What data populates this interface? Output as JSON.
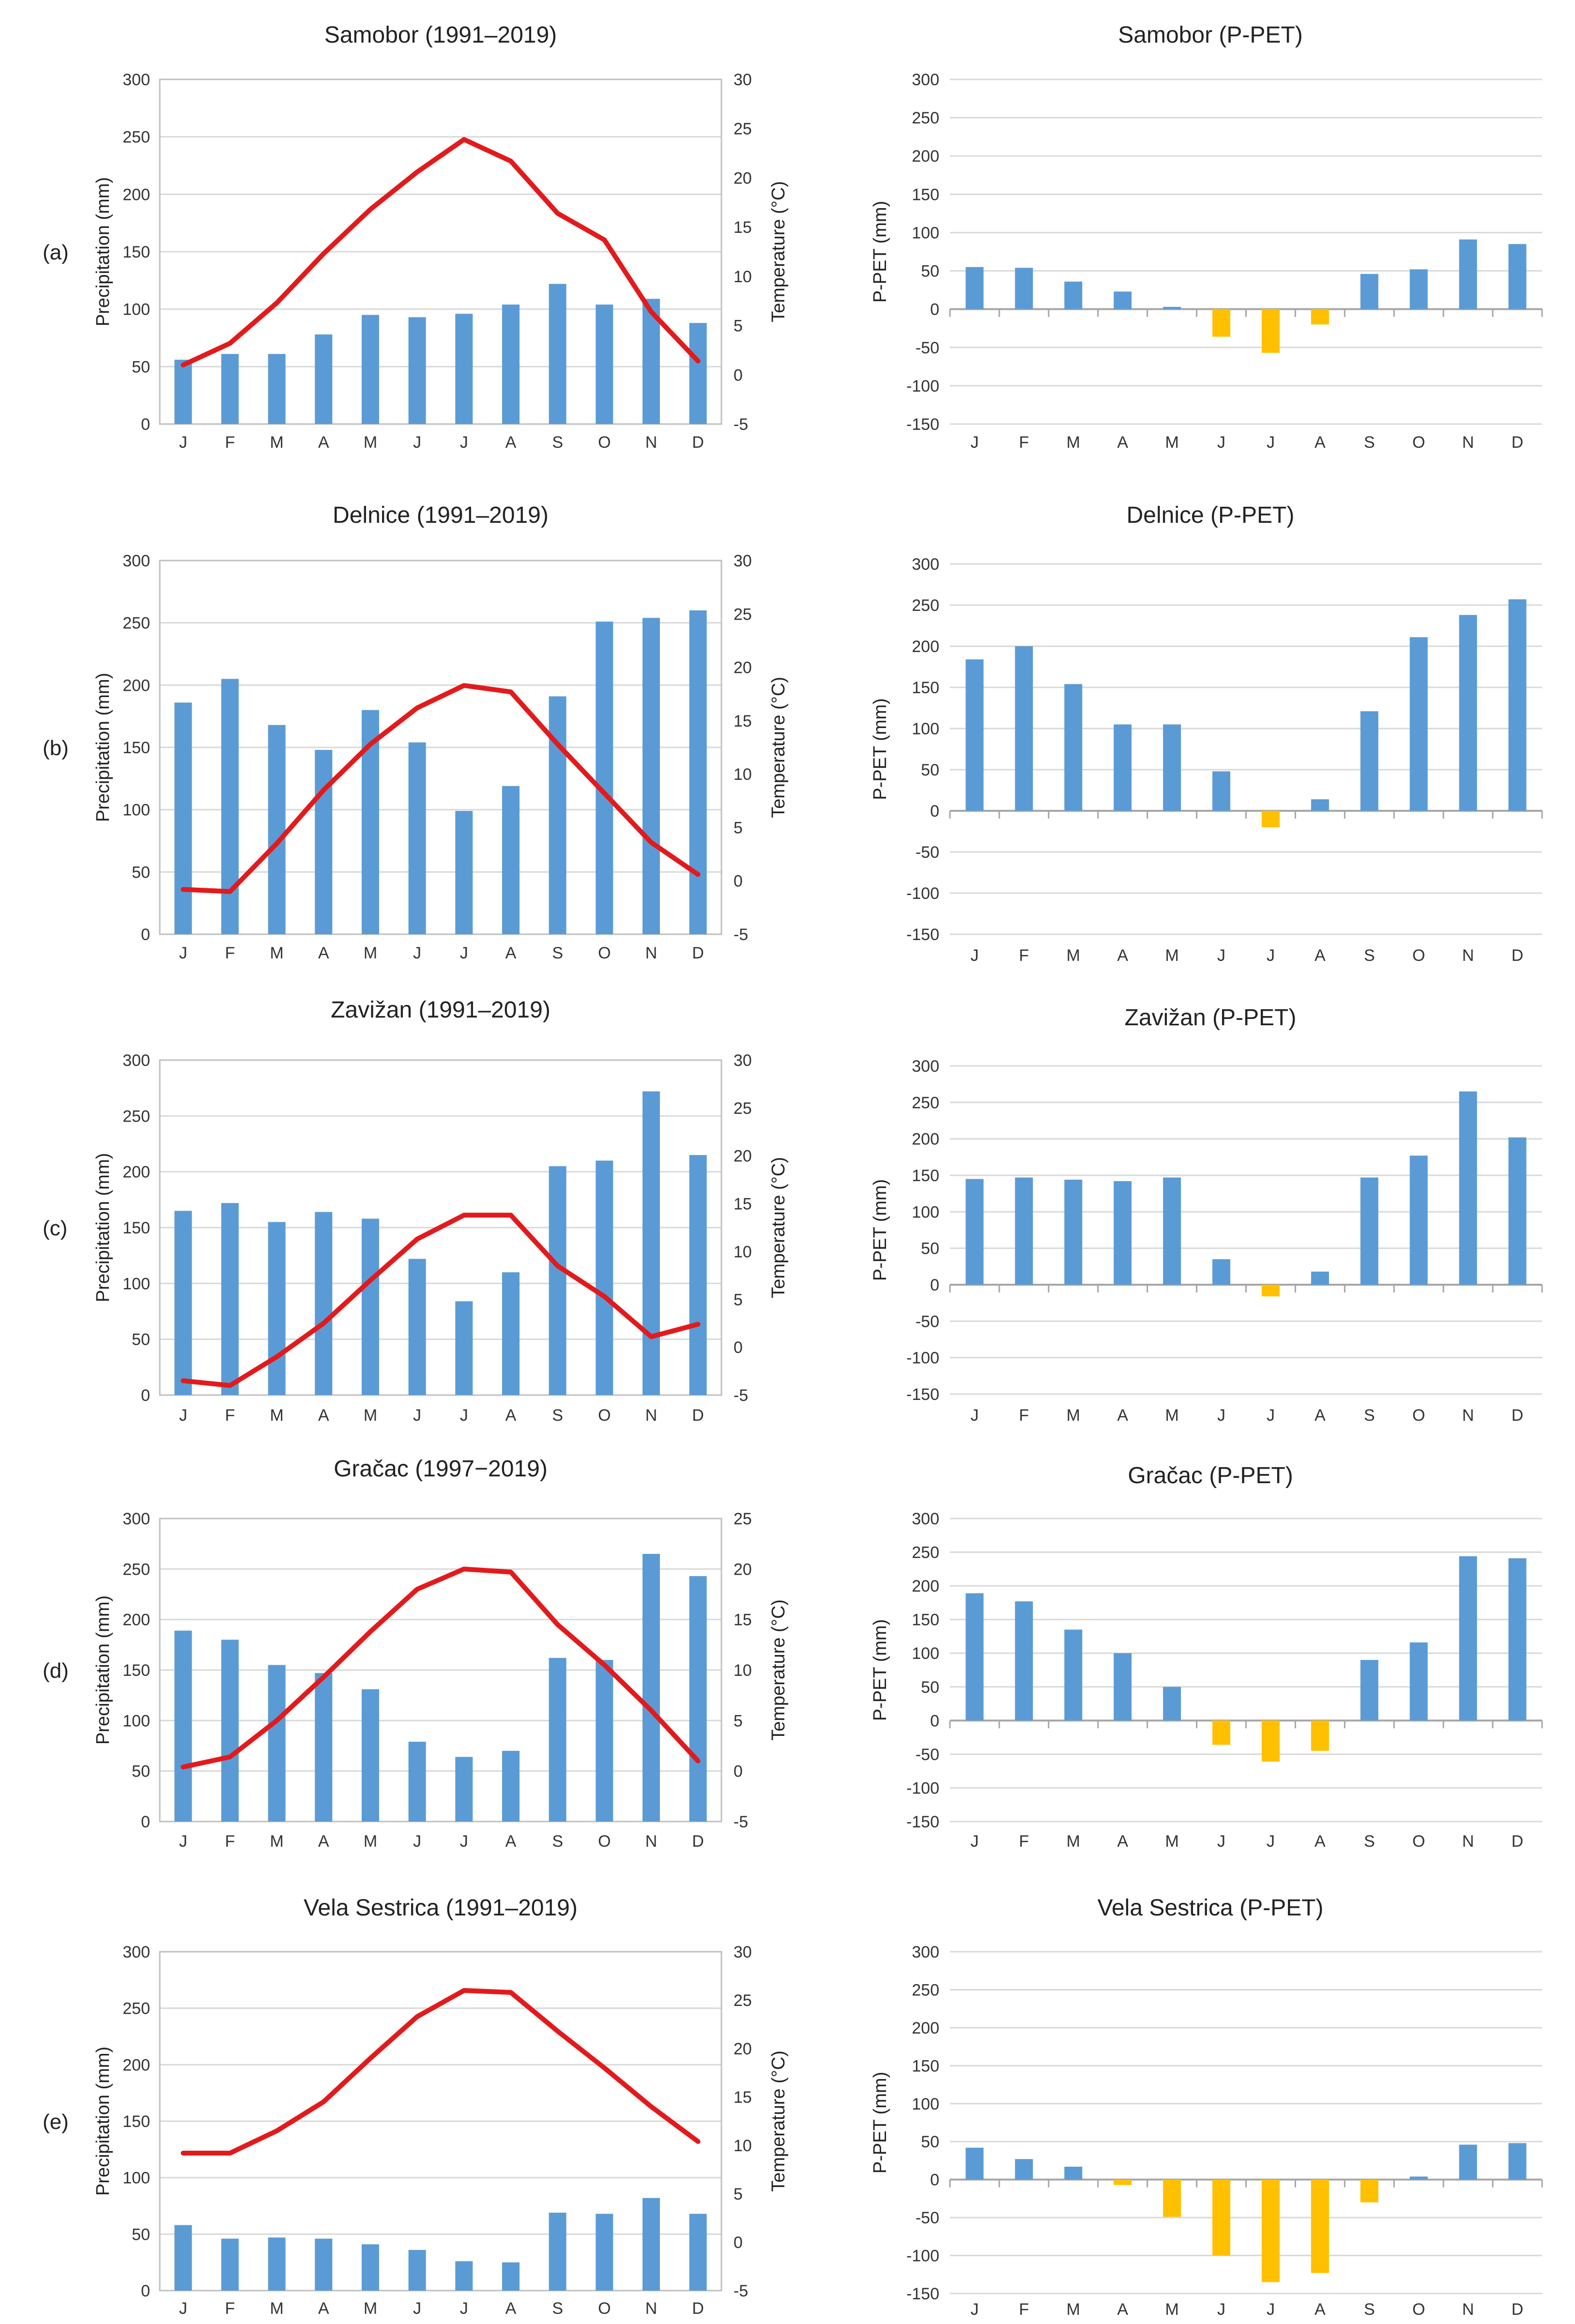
{
  "colors": {
    "bar": "#5B9BD5",
    "bar_negative": "#FFC000",
    "temperature_line": "#E31A1C",
    "grid": "#D9D9D9",
    "axis": "#BFBFBF"
  },
  "months": [
    "J",
    "F",
    "M",
    "A",
    "M",
    "J",
    "J",
    "A",
    "S",
    "O",
    "N",
    "D"
  ],
  "chart_data": [
    {
      "id": "samobor-climate",
      "panel_label": "(a)",
      "type": "bar+line",
      "title": "Samobor (1991–2019)",
      "ylabel": "Precipitation (mm)",
      "y2label": "Temperature (°C)",
      "ylim": [
        0,
        300
      ],
      "yticks": [
        0,
        50,
        100,
        150,
        200,
        250,
        300
      ],
      "y2lim": [
        -5,
        30
      ],
      "y2ticks": [
        -5,
        0,
        5,
        10,
        15,
        20,
        25,
        30
      ],
      "categories": [
        "J",
        "F",
        "M",
        "A",
        "M",
        "J",
        "J",
        "A",
        "S",
        "O",
        "N",
        "D"
      ],
      "series": [
        {
          "name": "Precipitation",
          "kind": "bar",
          "axis": "left",
          "values": [
            56,
            61,
            61,
            78,
            95,
            93,
            96,
            104,
            122,
            104,
            109,
            88
          ]
        },
        {
          "name": "Temperature",
          "kind": "line",
          "axis": "right",
          "values": [
            1.0,
            3.2,
            7.3,
            12.3,
            16.8,
            20.6,
            23.9,
            21.7,
            16.4,
            13.7,
            6.4,
            1.4
          ]
        }
      ]
    },
    {
      "id": "samobor-ppet",
      "type": "bar",
      "title": "Samobor (P-PET)",
      "ylabel": "P-PET (mm)",
      "ylim": [
        -150,
        300
      ],
      "yticks": [
        -150,
        -100,
        -50,
        0,
        50,
        100,
        150,
        200,
        250,
        300
      ],
      "categories": [
        "J",
        "F",
        "M",
        "A",
        "M",
        "J",
        "J",
        "A",
        "S",
        "O",
        "N",
        "D"
      ],
      "values": [
        55,
        54,
        36,
        23,
        3,
        -36,
        -57,
        -20,
        46,
        52,
        91,
        85
      ]
    },
    {
      "id": "delnice-climate",
      "panel_label": "(b)",
      "type": "bar+line",
      "title": "Delnice (1991–2019)",
      "ylabel": "Precipitation (mm)",
      "y2label": "Temperature (°C)",
      "ylim": [
        0,
        300
      ],
      "yticks": [
        0,
        50,
        100,
        150,
        200,
        250,
        300
      ],
      "y2lim": [
        -5,
        30
      ],
      "y2ticks": [
        -5,
        0,
        5,
        10,
        15,
        20,
        25,
        30
      ],
      "categories": [
        "J",
        "F",
        "M",
        "A",
        "M",
        "J",
        "J",
        "A",
        "S",
        "O",
        "N",
        "D"
      ],
      "series": [
        {
          "name": "Precipitation",
          "kind": "bar",
          "axis": "left",
          "values": [
            186,
            205,
            168,
            148,
            180,
            154,
            99,
            119,
            191,
            251,
            254,
            260
          ]
        },
        {
          "name": "Temperature",
          "kind": "line",
          "axis": "right",
          "values": [
            -0.8,
            -1.0,
            3.5,
            8.5,
            12.8,
            16.2,
            18.3,
            17.7,
            12.8,
            8.2,
            3.6,
            0.6
          ]
        }
      ]
    },
    {
      "id": "delnice-ppet",
      "type": "bar",
      "title": "Delnice (P-PET)",
      "ylabel": "P-PET (mm)",
      "ylim": [
        -150,
        300
      ],
      "yticks": [
        -150,
        -100,
        -50,
        0,
        50,
        100,
        150,
        200,
        250,
        300
      ],
      "categories": [
        "J",
        "F",
        "M",
        "A",
        "M",
        "J",
        "J",
        "A",
        "S",
        "O",
        "N",
        "D"
      ],
      "values": [
        184,
        200,
        154,
        105,
        105,
        48,
        -20,
        14,
        121,
        211,
        238,
        257
      ]
    },
    {
      "id": "zavizan-climate",
      "panel_label": "(c)",
      "type": "bar+line",
      "title": "Zavižan (1991–2019)",
      "ylabel": "Precipitation (mm)",
      "y2label": "Temperature (°C)",
      "ylim": [
        0,
        300
      ],
      "yticks": [
        0,
        50,
        100,
        150,
        200,
        250,
        300
      ],
      "y2lim": [
        -5,
        30
      ],
      "y2ticks": [
        -5,
        0,
        5,
        10,
        15,
        20,
        25,
        30
      ],
      "categories": [
        "J",
        "F",
        "M",
        "A",
        "M",
        "J",
        "J",
        "A",
        "S",
        "O",
        "N",
        "D"
      ],
      "series": [
        {
          "name": "Precipitation",
          "kind": "bar",
          "axis": "left",
          "values": [
            165,
            172,
            155,
            164,
            158,
            122,
            84,
            110,
            205,
            210,
            272,
            215
          ]
        },
        {
          "name": "Temperature",
          "kind": "line",
          "axis": "right",
          "values": [
            -3.5,
            -4.0,
            -1.0,
            2.5,
            7.0,
            11.3,
            13.8,
            13.8,
            8.5,
            5.3,
            1.1,
            2.4
          ]
        }
      ]
    },
    {
      "id": "zavizan-ppet",
      "type": "bar",
      "title": "Zavižan (P-PET)",
      "ylabel": "P-PET (mm)",
      "ylim": [
        -150,
        300
      ],
      "yticks": [
        -150,
        -100,
        -50,
        0,
        50,
        100,
        150,
        200,
        250,
        300
      ],
      "categories": [
        "J",
        "F",
        "M",
        "A",
        "M",
        "J",
        "J",
        "A",
        "S",
        "O",
        "N",
        "D"
      ],
      "values": [
        145,
        147,
        144,
        142,
        147,
        35,
        -16,
        18,
        147,
        177,
        265,
        202
      ]
    },
    {
      "id": "gracac-climate",
      "panel_label": "(d)",
      "type": "bar+line",
      "title": "Gračac (1997−2019)",
      "ylabel": "Precipitation (mm)",
      "y2label": "Temperature (°C)",
      "ylim": [
        0,
        300
      ],
      "yticks": [
        0,
        50,
        100,
        150,
        200,
        250,
        300
      ],
      "y2lim": [
        -5,
        25
      ],
      "y2ticks": [
        -5,
        0,
        5,
        10,
        15,
        20,
        25
      ],
      "categories": [
        "J",
        "F",
        "M",
        "A",
        "M",
        "J",
        "J",
        "A",
        "S",
        "O",
        "N",
        "D"
      ],
      "series": [
        {
          "name": "Precipitation",
          "kind": "bar",
          "axis": "left",
          "values": [
            189,
            180,
            155,
            147,
            131,
            79,
            64,
            70,
            162,
            160,
            265,
            243
          ]
        },
        {
          "name": "Temperature",
          "kind": "line",
          "axis": "right",
          "values": [
            0.4,
            1.4,
            5.0,
            9.3,
            13.8,
            18.0,
            20.0,
            19.7,
            14.5,
            10.5,
            6.0,
            1.0
          ]
        }
      ]
    },
    {
      "id": "gracac-ppet",
      "type": "bar",
      "title": "Gračac (P-PET)",
      "ylabel": "P-PET (mm)",
      "ylim": [
        -150,
        300
      ],
      "yticks": [
        -150,
        -100,
        -50,
        0,
        50,
        100,
        150,
        200,
        250,
        300
      ],
      "categories": [
        "J",
        "F",
        "M",
        "A",
        "M",
        "J",
        "J",
        "A",
        "S",
        "O",
        "N",
        "D"
      ],
      "values": [
        189,
        177,
        135,
        100,
        50,
        -36,
        -61,
        -45,
        90,
        116,
        244,
        241
      ]
    },
    {
      "id": "vela-sestrica-climate",
      "panel_label": "(e)",
      "type": "bar+line",
      "title": "Vela Sestrica (1991–2019)",
      "ylabel": "Precipitation (mm)",
      "y2label": "Temperature (°C)",
      "ylim": [
        0,
        300
      ],
      "yticks": [
        0,
        50,
        100,
        150,
        200,
        250,
        300
      ],
      "y2lim": [
        -5,
        30
      ],
      "y2ticks": [
        -5,
        0,
        5,
        10,
        15,
        20,
        25,
        30
      ],
      "categories": [
        "J",
        "F",
        "M",
        "A",
        "M",
        "J",
        "J",
        "A",
        "S",
        "O",
        "N",
        "D"
      ],
      "series": [
        {
          "name": "Precipitation",
          "kind": "bar",
          "axis": "left",
          "values": [
            58,
            46,
            47,
            46,
            41,
            36,
            26,
            25,
            69,
            68,
            82,
            68
          ]
        },
        {
          "name": "Temperature",
          "kind": "line",
          "axis": "right",
          "values": [
            9.2,
            9.2,
            11.5,
            14.5,
            19.0,
            23.3,
            26.0,
            25.8,
            21.8,
            18.0,
            14.0,
            10.4
          ]
        }
      ]
    },
    {
      "id": "vela-sestrica-ppet",
      "type": "bar",
      "title": "Vela Sestrica (P-PET)",
      "ylabel": "P-PET (mm)",
      "ylim": [
        -150,
        300
      ],
      "yticks": [
        -150,
        -100,
        -50,
        0,
        50,
        100,
        150,
        200,
        250,
        300
      ],
      "categories": [
        "J",
        "F",
        "M",
        "A",
        "M",
        "J",
        "J",
        "A",
        "S",
        "O",
        "N",
        "D"
      ],
      "values": [
        42,
        27,
        17,
        -7,
        -49,
        -100,
        -135,
        -123,
        -30,
        4,
        46,
        48
      ]
    }
  ]
}
